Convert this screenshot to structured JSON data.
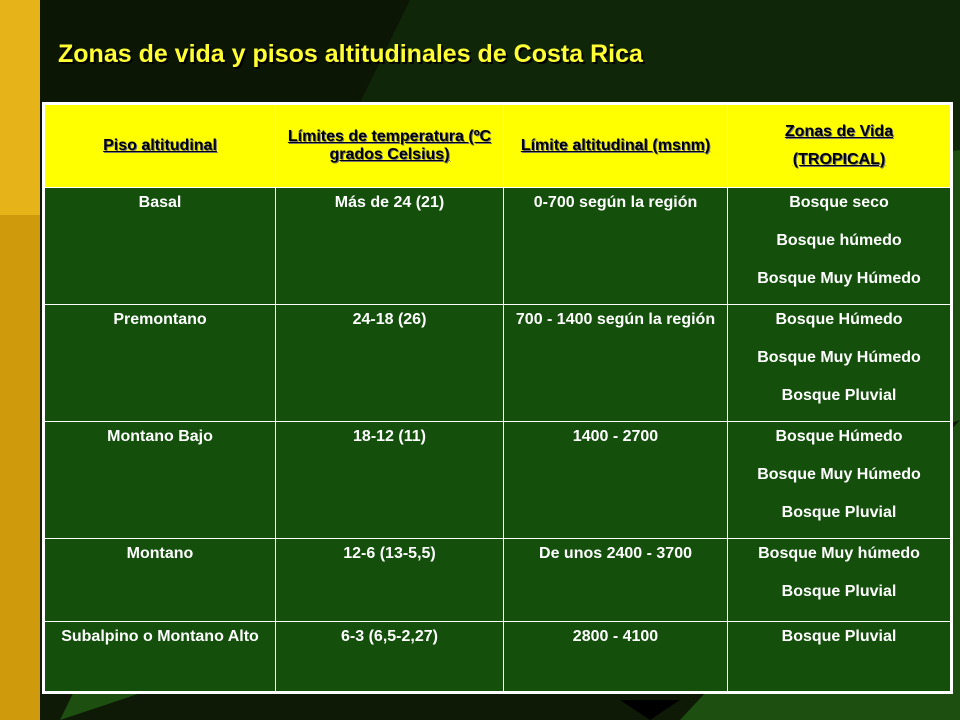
{
  "slide": {
    "title": "Zonas de vida y pisos altitudinales de Costa Rica",
    "colors": {
      "title": "#ffff33",
      "header_bg": "#ffff00",
      "body_bg": "#14500c",
      "sidebar": "#e6b419"
    }
  },
  "table": {
    "headers": [
      "Piso altitudinal",
      "Límites de temperatura (ºC grados Celsius)",
      "Límite altitudinal (msnm)",
      [
        "Zonas de Vida",
        "(TROPICAL)"
      ]
    ],
    "rows": [
      {
        "piso": "Basal",
        "temp": "Más de 24 (21)",
        "alt": "0-700 según la región",
        "zonas": [
          "Bosque seco",
          "Bosque húmedo",
          "Bosque Muy Húmedo"
        ]
      },
      {
        "piso": "Premontano",
        "temp": "24-18 (26)",
        "alt": "700 - 1400 según la región",
        "zonas": [
          "Bosque Húmedo",
          "Bosque Muy Húmedo",
          "Bosque Pluvial"
        ]
      },
      {
        "piso": "Montano Bajo",
        "temp": "18-12 (11)",
        "alt": "1400 - 2700",
        "zonas": [
          "Bosque Húmedo",
          "Bosque Muy Húmedo",
          "Bosque Pluvial"
        ]
      },
      {
        "piso": "Montano",
        "temp": "12-6 (13-5,5)",
        "alt": "De unos 2400 - 3700",
        "zonas": [
          "Bosque Muy húmedo",
          "Bosque Pluvial"
        ]
      },
      {
        "piso": "Subalpino o Montano Alto",
        "temp": "6-3 (6,5-2,27)",
        "alt": "2800 - 4100",
        "zonas": [
          "Bosque Pluvial"
        ]
      }
    ]
  }
}
